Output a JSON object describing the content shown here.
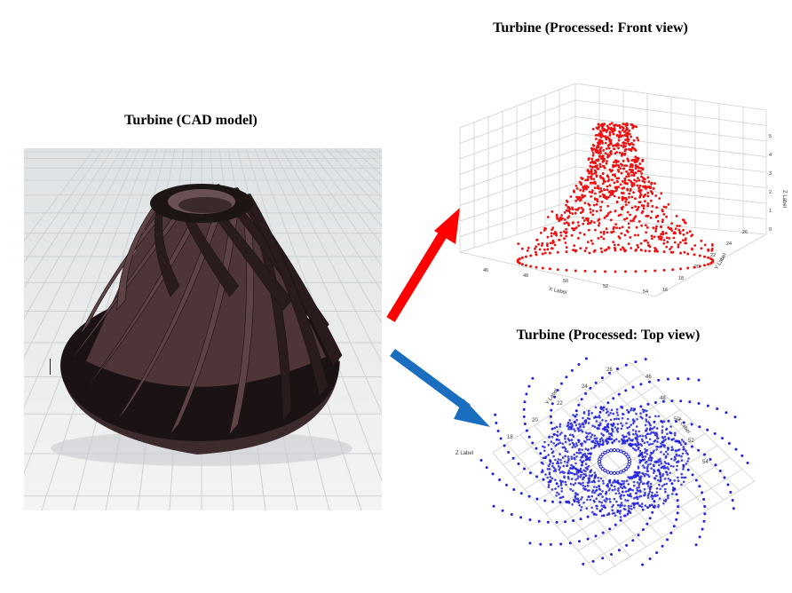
{
  "titles": {
    "cad": "Turbine (CAD model)",
    "front": "Turbine (Processed: Front view)",
    "top": "Turbine (Processed: Top view)"
  },
  "colors": {
    "front_points": "#ee1111",
    "top_points": "#2222dd",
    "arrow_red": "#ff0000",
    "arrow_blue": "#1a6ec0",
    "cad_body": "#5a3e40",
    "cad_shadow": "#140d0e",
    "grid": "#cfd3d6"
  },
  "front_axes": {
    "x_label": "X Label",
    "y_label": "Y Label",
    "z_label": "Z Label",
    "x_ticks": [
      "46",
      "48",
      "50",
      "52",
      "54"
    ],
    "y_ticks": [
      "16",
      "18",
      "20",
      "22",
      "24",
      "26"
    ],
    "z_ticks": [
      "0",
      "1",
      "2",
      "3",
      "4",
      "5"
    ]
  },
  "top_axes": {
    "x_label": "X Label",
    "y_label": "Y Label",
    "z_label": "Z Label",
    "x_ticks": [
      "46",
      "48",
      "50",
      "52",
      "54"
    ],
    "y_ticks": [
      "18",
      "20",
      "22",
      "24",
      "26"
    ]
  },
  "icons": {
    "red_arrow": "arrow-up-right",
    "blue_arrow": "arrow-down-right"
  }
}
